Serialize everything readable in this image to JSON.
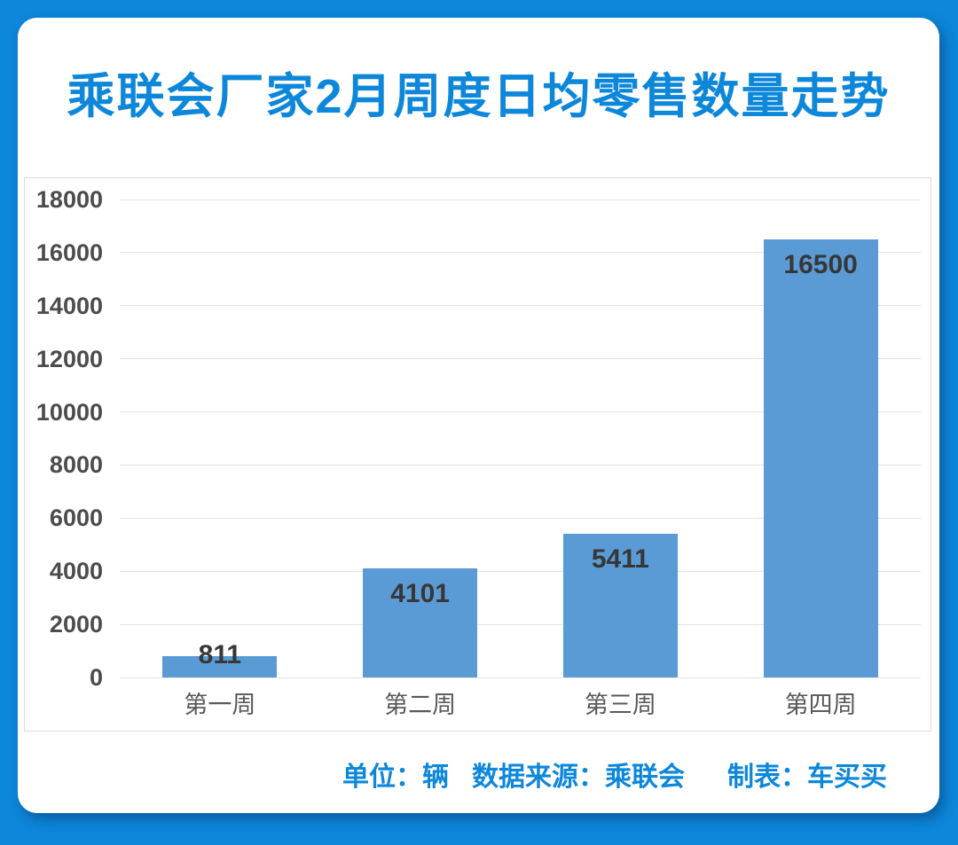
{
  "colors": {
    "frame_blue": "#0d87da",
    "title_blue": "#0d87da",
    "bar_fill": "#5b9bd5",
    "gridline": "#e3e3e3",
    "axis_text": "#4c4c4c",
    "data_label_text": "#373737",
    "footer_blue": "#0d87da"
  },
  "header": {
    "title": "乘联会厂家2月周度日均零售数量走势"
  },
  "chart_data": {
    "type": "bar",
    "title": "乘联会厂家2月周度日均零售数量走势",
    "categories": [
      "第一周",
      "第二周",
      "第三周",
      "第四周"
    ],
    "values": [
      811,
      4101,
      5411,
      16500
    ],
    "data_labels": [
      "811",
      "4101",
      "5411",
      "16500"
    ],
    "xlabel": "",
    "ylabel": "",
    "ylim": [
      0,
      18000
    ],
    "y_ticks": [
      0,
      2000,
      4000,
      6000,
      8000,
      10000,
      12000,
      14000,
      16000,
      18000
    ],
    "grid": "horizontal",
    "legend": "none",
    "unit": "辆"
  },
  "footer": {
    "unit": "单位：辆",
    "source": "数据来源：乘联会",
    "credit": "制表：车买买"
  }
}
